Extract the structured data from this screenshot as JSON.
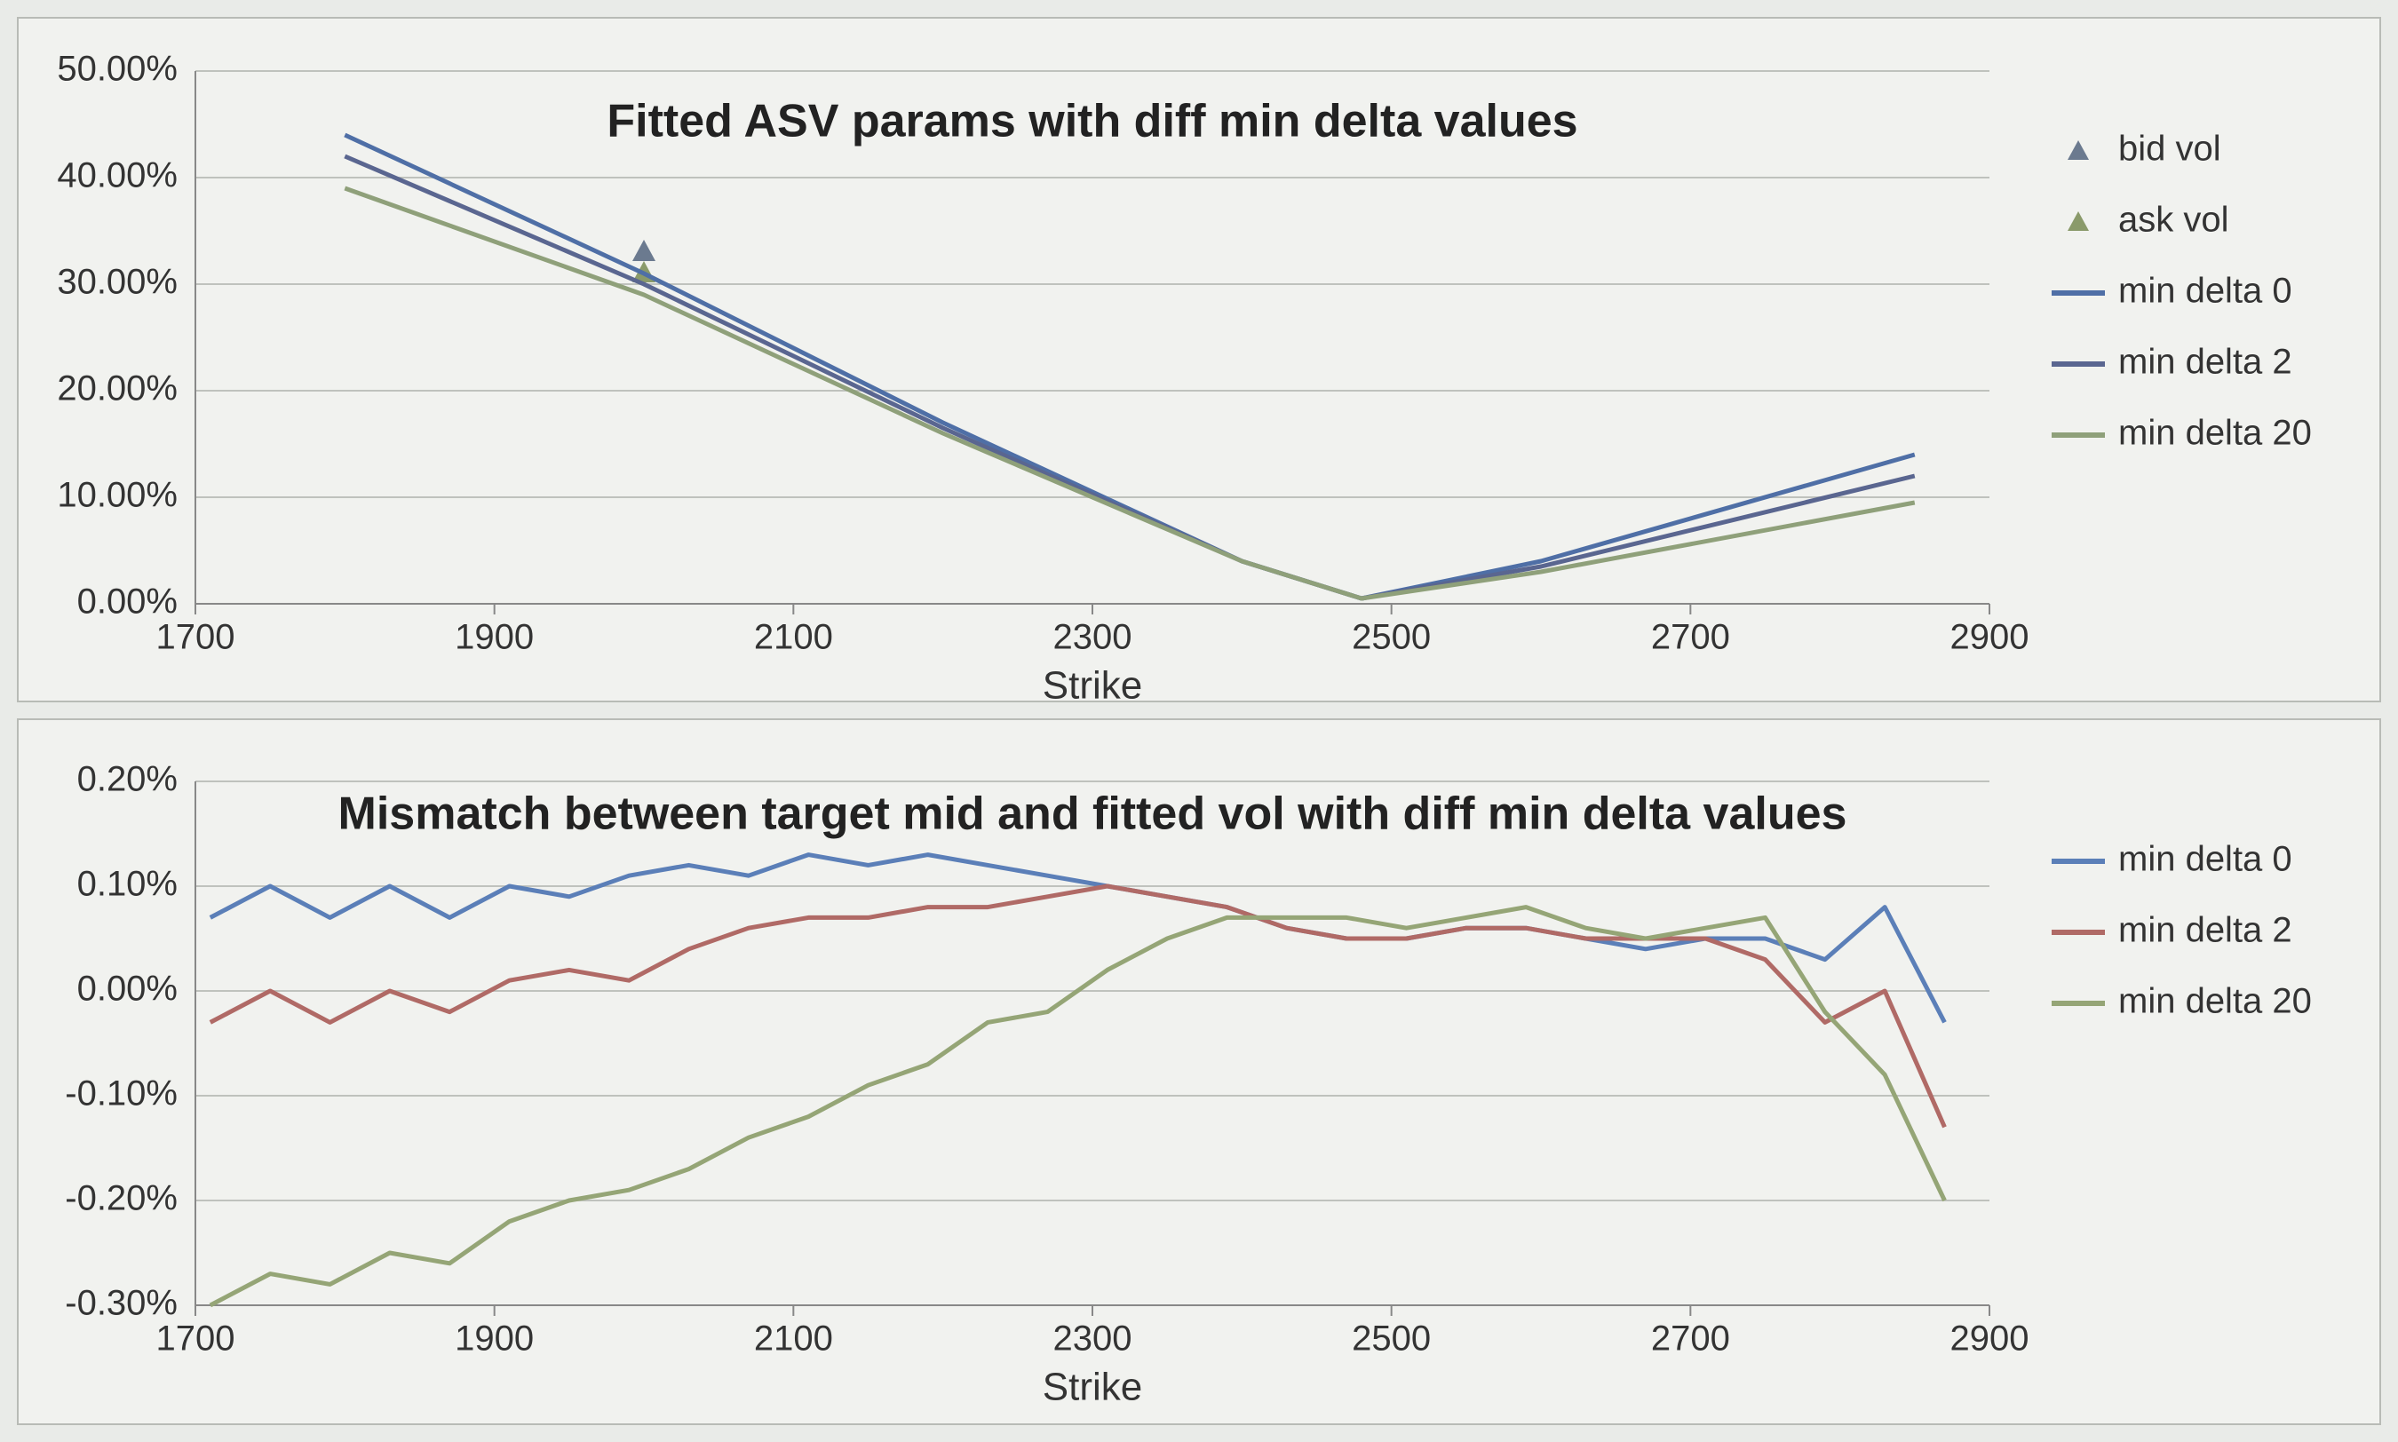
{
  "chart_data": [
    {
      "type": "line",
      "title": "Fitted ASV params with diff min delta values",
      "xlabel": "Strike",
      "x": [
        1800,
        2000,
        2200,
        2400,
        2480,
        2600,
        2850
      ],
      "xlim": [
        1700,
        2900
      ],
      "xticks": [
        1700,
        1900,
        2100,
        2300,
        2500,
        2700,
        2900
      ],
      "ylim": [
        0,
        50
      ],
      "yticks": [
        {
          "value": 0,
          "label": "0.00%"
        },
        {
          "value": 10,
          "label": "10.00%"
        },
        {
          "value": 20,
          "label": "20.00%"
        },
        {
          "value": 30,
          "label": "30.00%"
        },
        {
          "value": 40,
          "label": "40.00%"
        },
        {
          "value": 50,
          "label": "50.00%"
        }
      ],
      "grid": true,
      "legend": "right",
      "series": [
        {
          "name": "bid vol",
          "color": "#6b7a8f",
          "marker": "triangle",
          "values": [
            null,
            33,
            null,
            null,
            null,
            null,
            null
          ]
        },
        {
          "name": "ask vol",
          "color": "#8a9a6a",
          "marker": "triangle",
          "values": [
            null,
            31,
            null,
            null,
            null,
            null,
            null
          ]
        },
        {
          "name": "min delta 0",
          "color": "#4f6fa6",
          "values": [
            44,
            31,
            17,
            4,
            0.5,
            4,
            14
          ]
        },
        {
          "name": "min delta 2",
          "color": "#5a6690",
          "values": [
            42,
            30,
            16.5,
            4,
            0.5,
            3.5,
            12
          ]
        },
        {
          "name": "min delta 20",
          "color": "#8fa07a",
          "values": [
            39,
            29,
            16,
            4,
            0.5,
            3,
            9.5
          ]
        }
      ]
    },
    {
      "type": "line",
      "title": "Mismatch between target mid and fitted vol with diff min delta values",
      "xlabel": "Strike",
      "x": [
        1710,
        1750,
        1790,
        1830,
        1870,
        1910,
        1950,
        1990,
        2030,
        2070,
        2110,
        2150,
        2190,
        2230,
        2270,
        2310,
        2350,
        2390,
        2430,
        2470,
        2510,
        2550,
        2590,
        2630,
        2670,
        2710,
        2750,
        2790,
        2830,
        2870
      ],
      "xlim": [
        1700,
        2900
      ],
      "xticks": [
        1700,
        1900,
        2100,
        2300,
        2500,
        2700,
        2900
      ],
      "ylim": [
        -0.3,
        0.2
      ],
      "yticks": [
        {
          "value": -0.3,
          "label": "-0.30%"
        },
        {
          "value": -0.2,
          "label": "-0.20%"
        },
        {
          "value": -0.1,
          "label": "-0.10%"
        },
        {
          "value": 0,
          "label": "0.00%"
        },
        {
          "value": 0.1,
          "label": "0.10%"
        },
        {
          "value": 0.2,
          "label": "0.20%"
        }
      ],
      "grid": true,
      "legend": "right",
      "series": [
        {
          "name": "min delta 0",
          "color": "#5b7fb8",
          "values": [
            0.07,
            0.1,
            0.07,
            0.1,
            0.07,
            0.1,
            0.09,
            0.11,
            0.12,
            0.11,
            0.13,
            0.12,
            0.13,
            0.12,
            0.11,
            0.1,
            0.09,
            0.08,
            0.06,
            0.05,
            0.05,
            0.06,
            0.06,
            0.05,
            0.04,
            0.05,
            0.05,
            0.03,
            0.08,
            -0.03
          ]
        },
        {
          "name": "min delta 2",
          "color": "#b06a66",
          "values": [
            -0.03,
            0.0,
            -0.03,
            0.0,
            -0.02,
            0.01,
            0.02,
            0.01,
            0.04,
            0.06,
            0.07,
            0.07,
            0.08,
            0.08,
            0.09,
            0.1,
            0.09,
            0.08,
            0.06,
            0.05,
            0.05,
            0.06,
            0.06,
            0.05,
            0.05,
            0.05,
            0.03,
            -0.03,
            0.0,
            -0.13
          ]
        },
        {
          "name": "min delta 20",
          "color": "#95a576",
          "values": [
            -0.3,
            -0.27,
            -0.28,
            -0.25,
            -0.26,
            -0.22,
            -0.2,
            -0.19,
            -0.17,
            -0.14,
            -0.12,
            -0.09,
            -0.07,
            -0.03,
            -0.02,
            0.02,
            0.05,
            0.07,
            0.07,
            0.07,
            0.06,
            0.07,
            0.08,
            0.06,
            0.05,
            0.06,
            0.07,
            -0.02,
            -0.08,
            -0.2
          ]
        }
      ]
    }
  ]
}
